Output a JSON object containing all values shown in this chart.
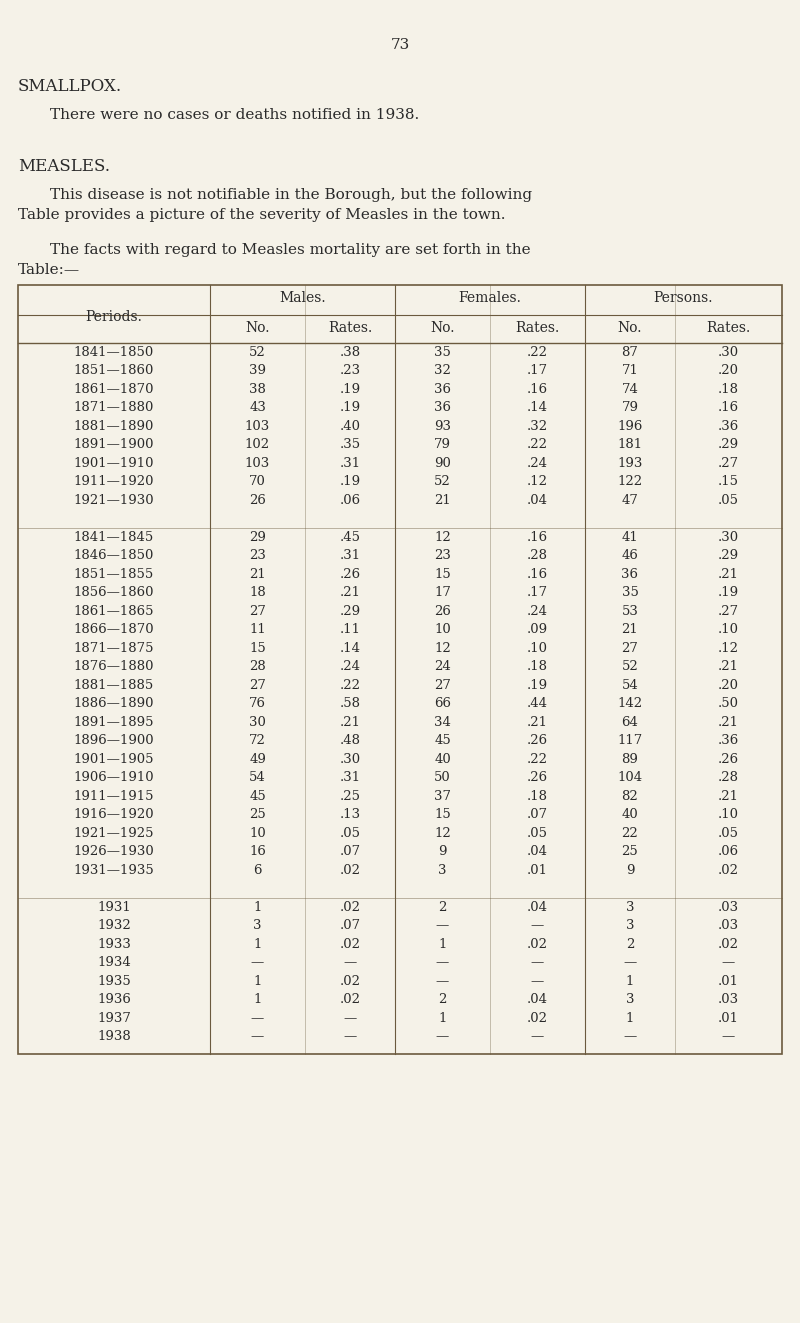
{
  "page_number": "73",
  "bg_color": "#f5f2e8",
  "section1_title": "SMALLPOX.",
  "section1_body": "There were no cases or deaths notified in 1938.",
  "section2_title": "MEASLES.",
  "section2_body1": "This disease is not notifiable in the Borough, but the following\nTable provides a picture of the severity of Measles in the town.",
  "section2_body2": "The facts with regard to Measles mortality are set forth in the\nTable:—",
  "col_headers_top": [
    "Males.",
    "Females.",
    "Persons."
  ],
  "col_headers_sub": [
    "No.",
    "Rates.",
    "No.",
    "Rates.",
    "No.",
    "Rates."
  ],
  "row_header": "Periods.",
  "rows": [
    [
      "1841—1850",
      "52",
      ".38",
      "35",
      ".22",
      "87",
      ".30"
    ],
    [
      "1851—1860",
      "39",
      ".23",
      "32",
      ".17",
      "71",
      ".20"
    ],
    [
      "1861—1870",
      "38",
      ".19",
      "36",
      ".16",
      "74",
      ".18"
    ],
    [
      "1871—1880",
      "43",
      ".19",
      "36",
      ".14",
      "79",
      ".16"
    ],
    [
      "1881—1890",
      "103",
      ".40",
      "93",
      ".32",
      "196",
      ".36"
    ],
    [
      "1891—1900",
      "102",
      ".35",
      "79",
      ".22",
      "181",
      ".29"
    ],
    [
      "1901—1910",
      "103",
      ".31",
      "90",
      ".24",
      "193",
      ".27"
    ],
    [
      "1911—1920",
      "70",
      ".19",
      "52",
      ".12",
      "122",
      ".15"
    ],
    [
      "1921—1930",
      "26",
      ".06",
      "21",
      ".04",
      "47",
      ".05"
    ],
    [
      "",
      "",
      "",
      "",
      "",
      "",
      ""
    ],
    [
      "1841—1845",
      "29",
      ".45",
      "12",
      ".16",
      "41",
      ".30"
    ],
    [
      "1846—1850",
      "23",
      ".31",
      "23",
      ".28",
      "46",
      ".29"
    ],
    [
      "1851—1855",
      "21",
      ".26",
      "15",
      ".16",
      "36",
      ".21"
    ],
    [
      "1856—1860",
      "18",
      ".21",
      "17",
      ".17",
      "35",
      ".19"
    ],
    [
      "1861—1865",
      "27",
      ".29",
      "26",
      ".24",
      "53",
      ".27"
    ],
    [
      "1866—1870",
      "11",
      ".11",
      "10",
      ".09",
      "21",
      ".10"
    ],
    [
      "1871—1875",
      "15",
      ".14",
      "12",
      ".10",
      "27",
      ".12"
    ],
    [
      "1876—1880",
      "28",
      ".24",
      "24",
      ".18",
      "52",
      ".21"
    ],
    [
      "1881—1885",
      "27",
      ".22",
      "27",
      ".19",
      "54",
      ".20"
    ],
    [
      "1886—1890",
      "76",
      ".58",
      "66",
      ".44",
      "142",
      ".50"
    ],
    [
      "1891—1895",
      "30",
      ".21",
      "34",
      ".21",
      "64",
      ".21"
    ],
    [
      "1896—1900",
      "72",
      ".48",
      "45",
      ".26",
      "117",
      ".36"
    ],
    [
      "1901—1905",
      "49",
      ".30",
      "40",
      ".22",
      "89",
      ".26"
    ],
    [
      "1906—1910",
      "54",
      ".31",
      "50",
      ".26",
      "104",
      ".28"
    ],
    [
      "1911—1915",
      "45",
      ".25",
      "37",
      ".18",
      "82",
      ".21"
    ],
    [
      "1916—1920",
      "25",
      ".13",
      "15",
      ".07",
      "40",
      ".10"
    ],
    [
      "1921—1925",
      "10",
      ".05",
      "12",
      ".05",
      "22",
      ".05"
    ],
    [
      "1926—1930",
      "16",
      ".07",
      "9",
      ".04",
      "25",
      ".06"
    ],
    [
      "1931—1935",
      "6",
      ".02",
      "3",
      ".01",
      "9",
      ".02"
    ],
    [
      "",
      "",
      "",
      "",
      "",
      "",
      ""
    ],
    [
      "1931",
      "1",
      ".02",
      "2",
      ".04",
      "3",
      ".03"
    ],
    [
      "1932",
      "3",
      ".07",
      "—",
      "—",
      "3",
      ".03"
    ],
    [
      "1933",
      "1",
      ".02",
      "1",
      ".02",
      "2",
      ".02"
    ],
    [
      "1934",
      "—",
      "—",
      "—",
      "—",
      "—",
      "—"
    ],
    [
      "1935",
      "1",
      ".02",
      "—",
      "—",
      "1",
      ".01"
    ],
    [
      "1936",
      "1",
      ".02",
      "2",
      ".04",
      "3",
      ".03"
    ],
    [
      "1937",
      "—",
      "—",
      "1",
      ".02",
      "1",
      ".01"
    ],
    [
      "1938",
      "—",
      "—",
      "—",
      "—",
      "—",
      "—"
    ]
  ]
}
